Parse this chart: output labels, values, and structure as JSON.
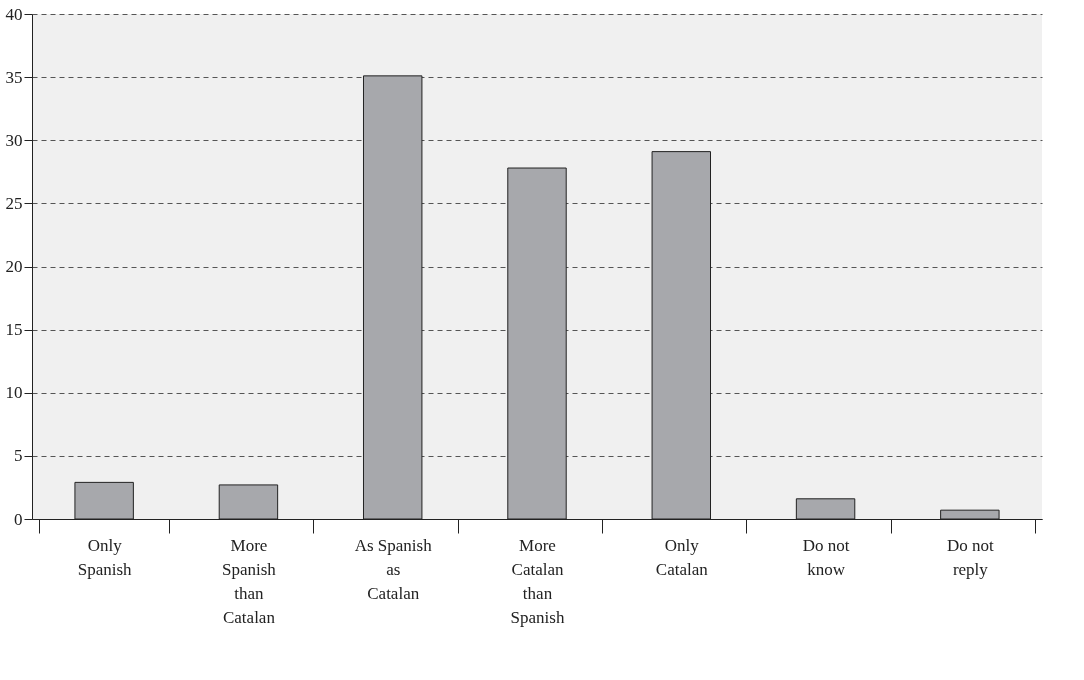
{
  "chart_data": {
    "type": "bar",
    "categories": [
      "Only\nSpanish",
      "More\nSpanish\nthan\nCatalan",
      "As Spanish\nas\nCatalan",
      "More\nCatalan\nthan\nSpanish",
      "Only\nCatalan",
      "Do not\nknow",
      "Do not\nreply"
    ],
    "values": [
      2.9,
      2.7,
      35.1,
      27.8,
      29.1,
      1.6,
      0.7
    ],
    "color": "#a7a8ac",
    "ylim": [
      0,
      40
    ],
    "yticks": [
      0,
      5,
      10,
      15,
      20,
      25,
      30,
      35,
      40
    ],
    "grid": "y"
  }
}
